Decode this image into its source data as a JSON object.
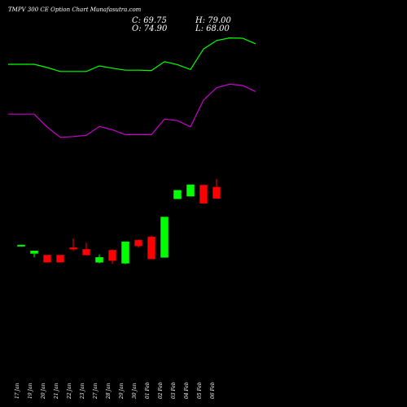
{
  "header": {
    "title": "TMPV 300  CE Option  Chart Munafasutra.com",
    "close_label": "C: 69.75",
    "high_label": "H: 79.00",
    "open_label": "O: 74.90",
    "low_label": "L: 68.00"
  },
  "colors": {
    "background": "#000000",
    "up": "#00ff00",
    "down": "#ff0000",
    "upper_band": "#00ff00",
    "lower_band": "#cc00cc",
    "text": "#ffffff"
  },
  "chart_data": {
    "type": "candlestick",
    "grid": false,
    "ylim": [
      40,
      121
    ],
    "categories": [
      "17 Jan",
      "19 Jan",
      "20 Jan",
      "21 Jan",
      "22 Jan",
      "23 Jan",
      "27 Jan",
      "28 Jan",
      "29 Jan",
      "30 Jan",
      "01 Feb",
      "02 Feb",
      "03 Feb",
      "04 Feb",
      "05 Feb",
      "06 Feb"
    ],
    "candles": [
      {
        "open": 53.0,
        "high": 53.0,
        "low": 53.0,
        "close": 53.0
      },
      {
        "open": 50.4,
        "high": 51.2,
        "low": 49.2,
        "close": 51.2
      },
      {
        "open": 49.9,
        "high": 49.9,
        "low": 47.6,
        "close": 47.7
      },
      {
        "open": 49.9,
        "high": 49.9,
        "low": 47.7,
        "close": 47.7
      },
      {
        "open": 52.2,
        "high": 55.0,
        "low": 51.2,
        "close": 51.7
      },
      {
        "open": 51.7,
        "high": 53.7,
        "low": 49.9,
        "close": 49.9
      },
      {
        "open": 47.7,
        "high": 50.1,
        "low": 47.4,
        "close": 49.2
      },
      {
        "open": 51.4,
        "high": 51.7,
        "low": 47.2,
        "close": 48.2
      },
      {
        "open": 47.4,
        "high": 54.0,
        "low": 47.1,
        "close": 54.0
      },
      {
        "open": 54.5,
        "high": 54.7,
        "low": 52.2,
        "close": 52.7
      },
      {
        "open": 55.5,
        "high": 55.9,
        "low": 48.7,
        "close": 48.7
      },
      {
        "open": 49.2,
        "high": 61.6,
        "low": 49.2,
        "close": 61.6
      },
      {
        "open": 67.2,
        "high": 69.8,
        "low": 67.2,
        "close": 69.8
      },
      {
        "open": 68.0,
        "high": 71.5,
        "low": 68.0,
        "close": 71.5
      },
      {
        "open": 71.4,
        "high": 71.5,
        "low": 65.8,
        "close": 65.8
      },
      {
        "open": 70.8,
        "high": 73.3,
        "low": 67.3,
        "close": 67.3
      }
    ],
    "upper_band": [
      [
        -1,
        108.5
      ],
      [
        0,
        108.5
      ],
      [
        1,
        108.5
      ],
      [
        2,
        107.5
      ],
      [
        3,
        106.3
      ],
      [
        4,
        106.3
      ],
      [
        5,
        106.3
      ],
      [
        6,
        108.0
      ],
      [
        7,
        107.3
      ],
      [
        8,
        106.7
      ],
      [
        9,
        106.7
      ],
      [
        10,
        106.6
      ],
      [
        11,
        109.3
      ],
      [
        12,
        108.4
      ],
      [
        13,
        106.9
      ],
      [
        14,
        113.2
      ],
      [
        15,
        115.8
      ],
      [
        16,
        116.6
      ],
      [
        17,
        116.5
      ],
      [
        18,
        114.8
      ]
    ],
    "lower_band": [
      [
        -1,
        93.2
      ],
      [
        0,
        93.2
      ],
      [
        1,
        93.2
      ],
      [
        2,
        89.2
      ],
      [
        3,
        86.1
      ],
      [
        4,
        86.3
      ],
      [
        5,
        86.7
      ],
      [
        6,
        89.4
      ],
      [
        7,
        88.4
      ],
      [
        8,
        86.9
      ],
      [
        9,
        86.9
      ],
      [
        10,
        86.9
      ],
      [
        11,
        91.7
      ],
      [
        12,
        91.2
      ],
      [
        13,
        89.3
      ],
      [
        14,
        97.5
      ],
      [
        15,
        101.3
      ],
      [
        16,
        102.4
      ],
      [
        17,
        102.0
      ],
      [
        18,
        100.1
      ]
    ],
    "ohlc_last": {
      "open": 74.9,
      "high": 79.0,
      "low": 68.0,
      "close": 69.75
    }
  }
}
